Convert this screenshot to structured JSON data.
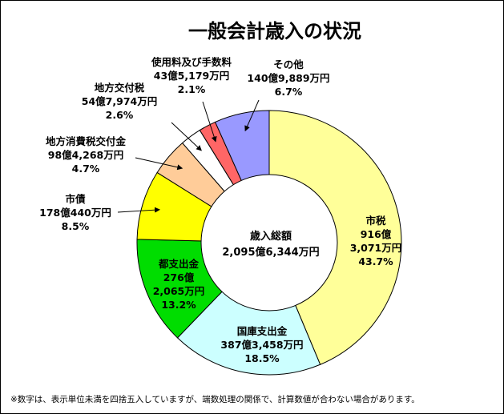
{
  "chart_data": {
    "type": "pie",
    "title": "一般会計歳入の状況",
    "center_label": {
      "title": "歳入総額",
      "value": "2,095億6,344万円"
    },
    "slices": [
      {
        "name": "市税",
        "amount": "916億3,071万円",
        "amount_line1": "916億",
        "amount_line2": "3,071万円",
        "percent": 43.7,
        "percent_label": "43.7%",
        "color": "#ffff99"
      },
      {
        "name": "国庫支出金",
        "amount": "387億3,458万円",
        "percent": 18.5,
        "percent_label": "18.5%",
        "color": "#ccffff"
      },
      {
        "name": "都支出金",
        "amount": "276億2,065万円",
        "amount_line1": "276億",
        "amount_line2": "2,065万円",
        "percent": 13.2,
        "percent_label": "13.2%",
        "color": "#00dd00"
      },
      {
        "name": "市債",
        "amount": "178億440万円",
        "percent": 8.5,
        "percent_label": "8.5%",
        "color": "#ffff00"
      },
      {
        "name": "地方消費税交付金",
        "amount": "98億4,268万円",
        "percent": 4.7,
        "percent_label": "4.7%",
        "color": "#ffcc99"
      },
      {
        "name": "地方交付税",
        "amount": "54億7,974万円",
        "percent": 2.6,
        "percent_label": "2.6%",
        "color": "#ffffff"
      },
      {
        "name": "使用料及び手数料",
        "amount": "43億5,179万円",
        "percent": 2.1,
        "percent_label": "2.1%",
        "color": "#ff6666"
      },
      {
        "name": "その他",
        "amount": "140億9,889万円",
        "percent": 6.7,
        "percent_label": "6.7%",
        "color": "#9999ff"
      }
    ],
    "footnote": "※数字は、表示単位未満を四捨五入していますが、端数処理の関係で、計算数値が合わない場合があります。"
  }
}
